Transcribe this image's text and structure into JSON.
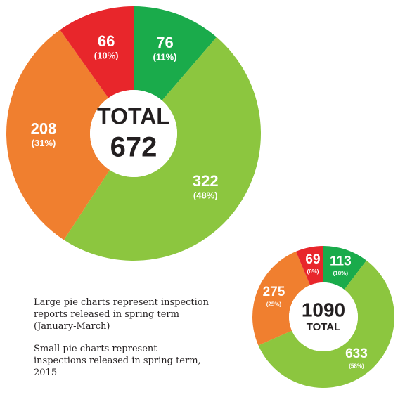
{
  "chart_data": [
    {
      "type": "pie",
      "center_label": "TOTAL",
      "total": 672,
      "values": [
        76,
        322,
        208,
        66
      ],
      "percent_labels": [
        "(11%)",
        "(48%)",
        "(31%)",
        "(10%)"
      ],
      "colors": [
        "#1aab4b",
        "#8cc63f",
        "#f07f2f",
        "#e8262b"
      ]
    },
    {
      "type": "pie",
      "center_label": "TOTAL",
      "total": 1090,
      "values": [
        113,
        633,
        275,
        69
      ],
      "percent_labels": [
        "(10%)",
        "(58%)",
        "(25%)",
        "(6%)"
      ],
      "colors": [
        "#1aab4b",
        "#8cc63f",
        "#f07f2f",
        "#e8262b"
      ]
    }
  ],
  "notes": [
    "Large pie charts represent inspection reports released in spring term (January-March)",
    "Small pie charts represent inspections released in spring term, 2015"
  ]
}
